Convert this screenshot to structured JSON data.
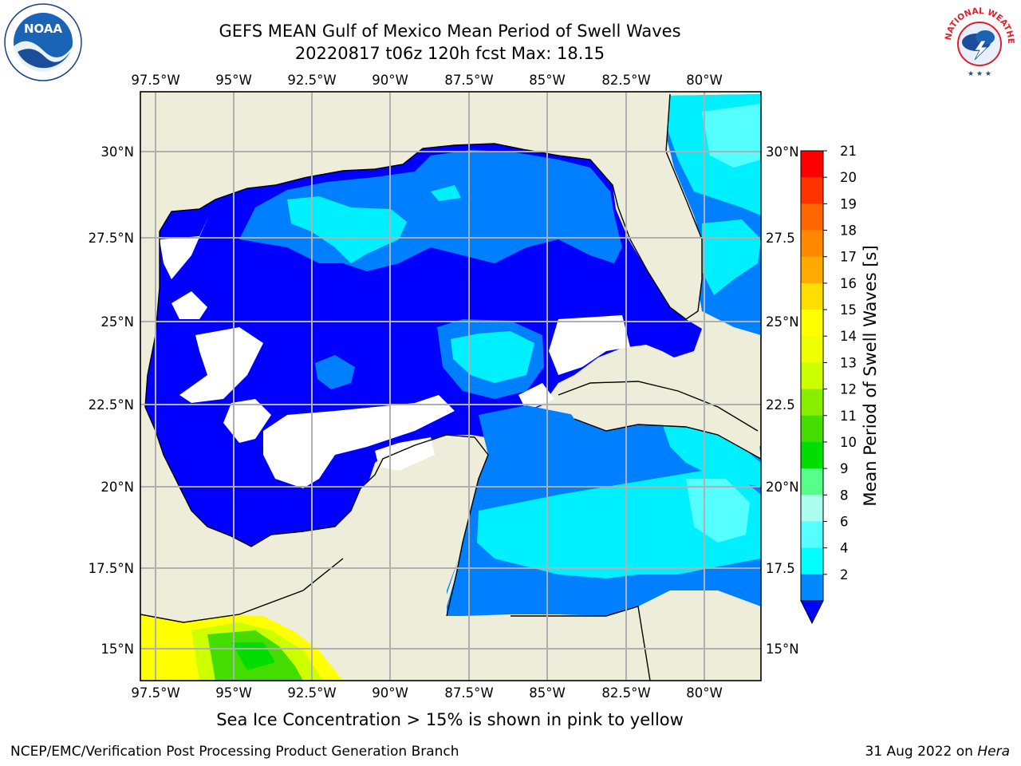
{
  "header": {
    "title_line1": "GEFS MEAN Gulf of Mexico Mean Period of Swell Waves",
    "title_line2": "20220817 t06z 120h fcst   Max: 18.15"
  },
  "map": {
    "lon_labels": [
      "97.5°W",
      "95°W",
      "92.5°W",
      "90°W",
      "87.5°W",
      "85°W",
      "82.5°W",
      "80°W"
    ],
    "lat_labels_left": [
      "30°N",
      "27.5°N",
      "25°N",
      "22.5°N",
      "20°N",
      "17.5°N",
      "15°N"
    ],
    "lat_labels_right": [
      "30°N",
      "27.5",
      "25°N",
      "22.5",
      "20°N",
      "17.5",
      "15°N"
    ],
    "colors": {
      "land": "#eeedda",
      "ocean_missing": "#ffffff",
      "grid": "#b0b0b0"
    }
  },
  "colorbar": {
    "label": "Mean Period of Swell Waves [s]",
    "ticks": [
      "21",
      "20",
      "19",
      "18",
      "17",
      "16",
      "15",
      "14",
      "13",
      "12",
      "11",
      "10",
      "9",
      "8",
      "6",
      "4",
      "2"
    ],
    "colors": [
      "#ff0000",
      "#ff3300",
      "#ff6600",
      "#ff8800",
      "#ffaa00",
      "#ffdd00",
      "#ffff00",
      "#eeff00",
      "#ccff00",
      "#88ee00",
      "#44dd00",
      "#00dd00",
      "#55ff88",
      "#aaffee",
      "#55ffff",
      "#00ffff",
      "#0088ff"
    ],
    "extend_color": "#0000ff"
  },
  "footer": {
    "note": "Sea Ice Concentration > 15% is shown in pink to yellow",
    "left_credit": "NCEP/EMC/Verification Post Processing Product Generation Branch",
    "right_credit_date": "31 Aug 2022 on",
    "right_credit_host": "Hera"
  },
  "logos": {
    "left": "noaa-logo",
    "right": "national-weather-service-logo",
    "nws_text": "NATIONAL WEATHER SERVICE"
  }
}
